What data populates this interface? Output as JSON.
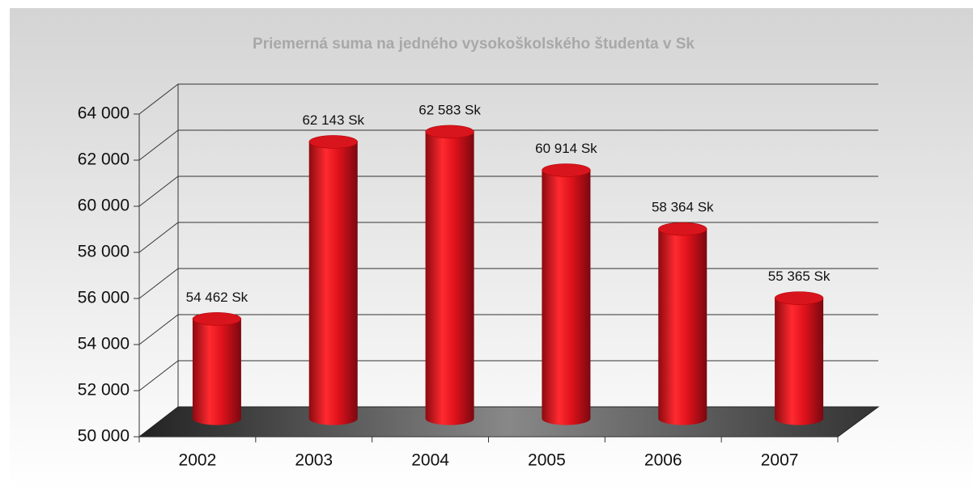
{
  "chart_data": {
    "type": "bar3d",
    "title": "Priemerná suma na jedného vysokoškolského študenta v Sk",
    "categories": [
      "2002",
      "2003",
      "2004",
      "2005",
      "2006",
      "2007"
    ],
    "values": [
      54462,
      62143,
      62583,
      60914,
      58364,
      55365
    ],
    "value_labels": [
      "54 462 Sk",
      "62 143 Sk",
      "62 583 Sk",
      "60 914 Sk",
      "58 364 Sk",
      "55 365 Sk"
    ],
    "color": "#e0121b",
    "ylim": [
      50000,
      64000
    ],
    "yticks": [
      {
        "value": 50000,
        "label": "50 000"
      },
      {
        "value": 52000,
        "label": "52 000"
      },
      {
        "value": 54000,
        "label": "54 000"
      },
      {
        "value": 56000,
        "label": "56 000"
      },
      {
        "value": 58000,
        "label": "58 000"
      },
      {
        "value": 60000,
        "label": "60 000"
      },
      {
        "value": 62000,
        "label": "62 000"
      },
      {
        "value": 64000,
        "label": "64 000"
      }
    ],
    "grid": true
  }
}
